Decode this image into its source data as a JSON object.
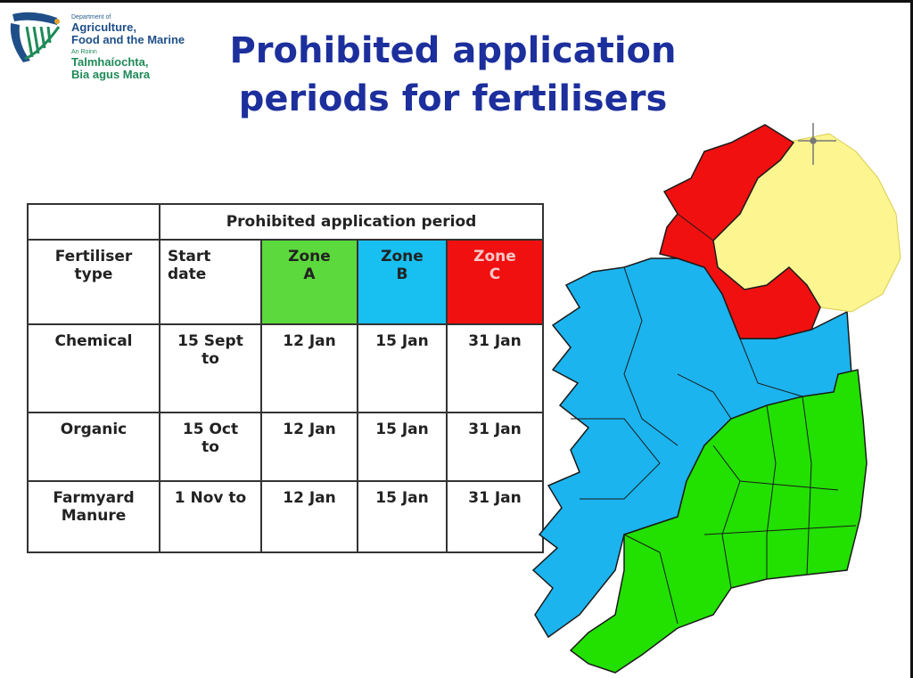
{
  "logo": {
    "dept_small": "Department of",
    "dept_line1": "Agriculture,",
    "dept_line2": "Food and the Marine",
    "irish_small": "An Roinn",
    "irish_line1": "Talmhaíochta,",
    "irish_line2": "Bia agus Mara",
    "colors": {
      "blue": "#1f4f88",
      "green": "#1e8a58"
    }
  },
  "title": {
    "line1": "Prohibited application",
    "line2": "periods for fertilisers",
    "color": "#1c2f9c"
  },
  "table": {
    "group_header": "Prohibited application period",
    "col_type": {
      "line1": "Fertiliser",
      "line2": "type"
    },
    "col_start": {
      "line1": "Start",
      "line2": "date"
    },
    "zones": [
      {
        "line1": "Zone",
        "line2": "A",
        "color": "#5cd93c"
      },
      {
        "line1": "Zone",
        "line2": "B",
        "color": "#17c0f0"
      },
      {
        "line1": "Zone",
        "line2": "C",
        "color": "#f01010"
      }
    ],
    "rows": [
      {
        "type_line1": "Chemical",
        "type_line2": "",
        "start_line1": "15 Sept",
        "start_line2": "to",
        "zone_a": "12 Jan",
        "zone_b": "15 Jan",
        "zone_c": "31 Jan"
      },
      {
        "type_line1": "Organic",
        "type_line2": "",
        "start_line1": "15 Oct",
        "start_line2": "to",
        "zone_a": "12 Jan",
        "zone_b": "15 Jan",
        "zone_c": "31 Jan"
      },
      {
        "type_line1": "Farmyard",
        "type_line2": "Manure",
        "start_line1": "1 Nov to",
        "start_line2": "",
        "zone_a": "12 Jan",
        "zone_b": "15 Jan",
        "zone_c": "31 Jan"
      }
    ]
  },
  "map": {
    "colors": {
      "zone_a": "#22e000",
      "zone_b": "#1bb4ee",
      "zone_c": "#f01010",
      "northern_ireland": "#fdf590",
      "border": "#1a1a1a"
    }
  }
}
